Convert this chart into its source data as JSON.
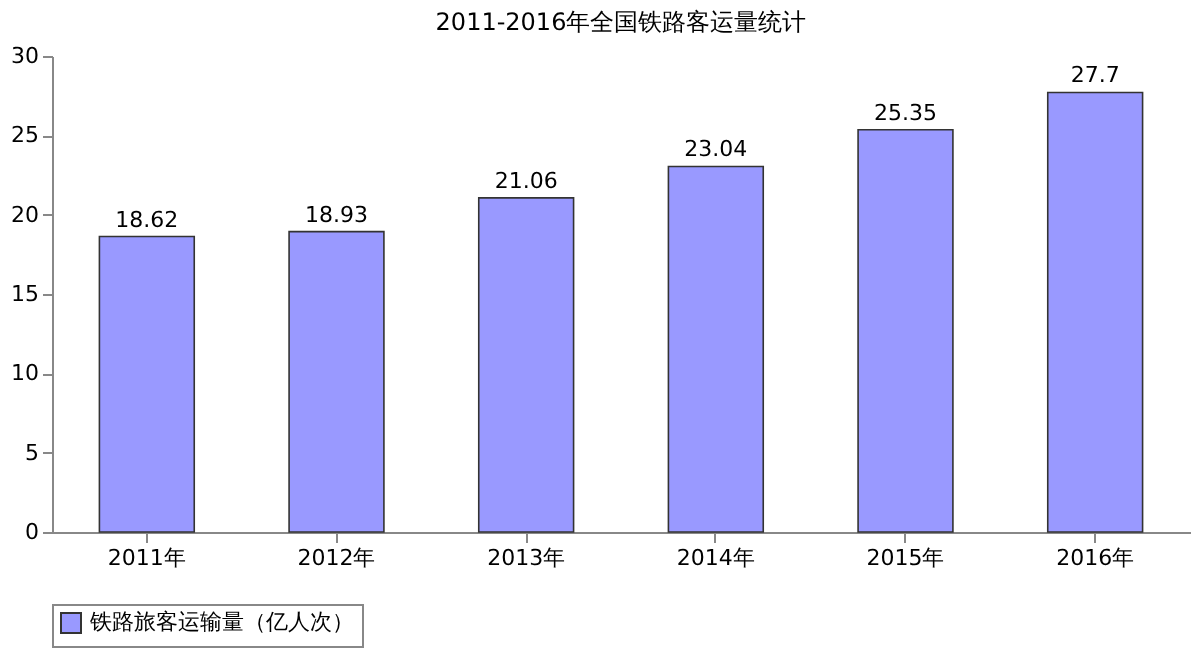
{
  "chart_data": {
    "type": "bar",
    "title": "2011-2016年全国铁路客运量统计",
    "categories": [
      "2011年",
      "2012年",
      "2013年",
      "2014年",
      "2015年",
      "2016年"
    ],
    "series": [
      {
        "name": "铁路旅客运输量（亿人次）",
        "color": "#9999ff",
        "values": [
          18.62,
          18.93,
          21.06,
          23.04,
          25.35,
          27.7
        ]
      }
    ],
    "ylim": [
      0,
      30
    ],
    "yticks": [
      0,
      5,
      10,
      15,
      20,
      25,
      30
    ],
    "grid": false,
    "legend": "bottom",
    "data_labels": true
  }
}
